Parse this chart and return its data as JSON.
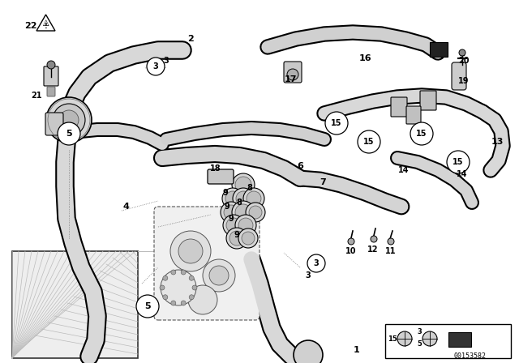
{
  "bg_color": "#ffffff",
  "fig_width": 6.4,
  "fig_height": 4.48,
  "dpi": 100,
  "part_number": "00153582",
  "line_color": "#000000",
  "gray_fill": "#c8c8c8",
  "dark_gray": "#888888",
  "label_fontsize": 7
}
